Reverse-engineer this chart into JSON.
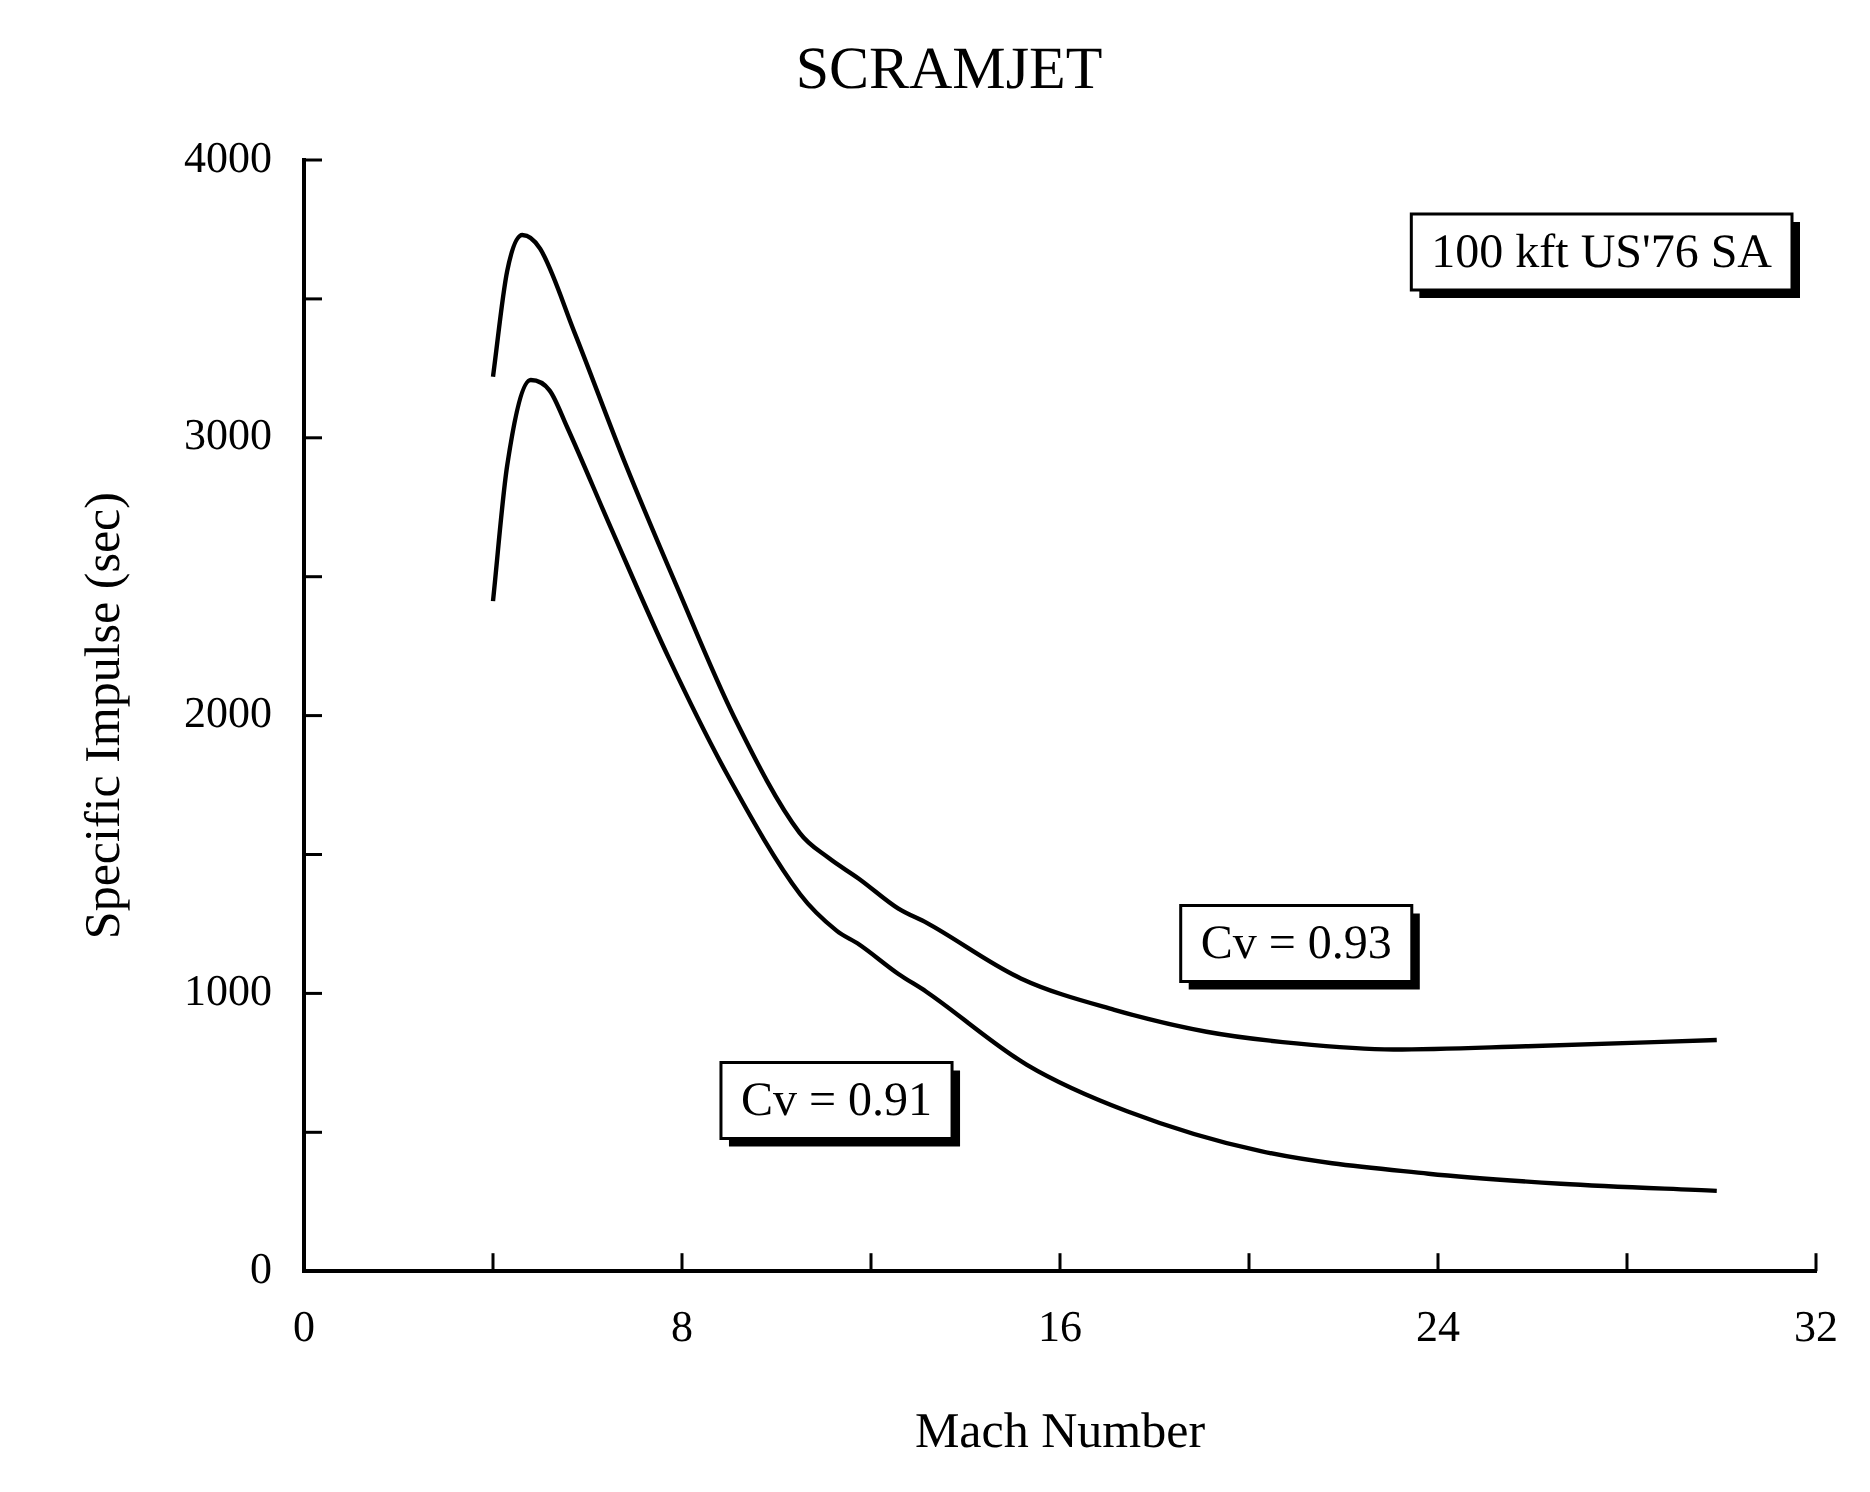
{
  "chart_data": {
    "type": "line",
    "title": "SCRAMJET",
    "xlabel": "Mach Number",
    "ylabel": "Specific Impulse (sec)",
    "xlim": [
      0,
      32
    ],
    "xticks": [
      0,
      {
        "value": 4,
        "label": null
      },
      8,
      {
        "value": 12,
        "label": null
      },
      16,
      {
        "value": 20,
        "label": null
      },
      24,
      {
        "value": 28,
        "label": null
      },
      32
    ],
    "ylim": [
      0,
      4000
    ],
    "yticks": [
      0,
      {
        "value": 500,
        "label": null
      },
      1000,
      {
        "value": 1500,
        "label": null
      },
      2000,
      {
        "value": 2500,
        "label": null
      },
      3000,
      {
        "value": 3500,
        "label": null
      },
      4000
    ],
    "grid": false,
    "legend": false,
    "marker": "none",
    "line_style": "solid",
    "series": [
      {
        "name": "Cv = 0.93",
        "color": "#000000",
        "x": [
          4.0,
          4.3,
          4.62,
          5.0,
          5.73,
          6.8,
          7.89,
          9.1,
          10.49,
          11.1,
          11.75,
          12.58,
          13.18,
          15.17,
          17.15,
          19.1,
          21.0,
          23.06,
          25.9,
          29.9
        ],
        "values": [
          3220,
          3600,
          3730,
          3680,
          3377,
          2907,
          2465,
          1996,
          1578,
          1488,
          1412,
          1305,
          1254,
          1054,
          941,
          862,
          820,
          798,
          810,
          832
        ]
      },
      {
        "name": "Cv = 0.91",
        "color": "#000000",
        "x": [
          4.0,
          4.3,
          4.8,
          5.2,
          5.57,
          6.5,
          7.73,
          8.96,
          10.5,
          11.27,
          11.75,
          12.58,
          13.17,
          15.3,
          17.42,
          20.25,
          23.8,
          26.6,
          29.9
        ],
        "values": [
          2412,
          2900,
          3208,
          3170,
          3038,
          2674,
          2204,
          1787,
          1357,
          1226,
          1176,
          1070,
          1006,
          743,
          576,
          432,
          351,
          315,
          289
        ]
      }
    ],
    "annotations": [
      "100 kft US'76 SA"
    ]
  }
}
